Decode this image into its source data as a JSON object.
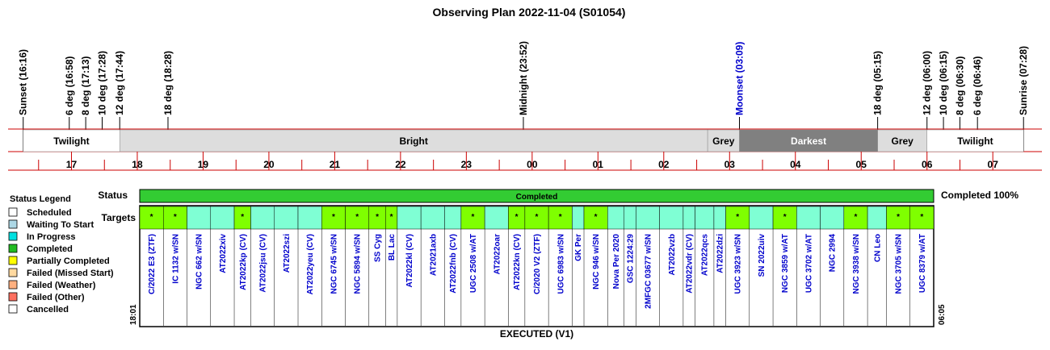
{
  "chart_data": {
    "type": "timeline",
    "title": "Observing Plan 2022-11-04 (S01054)",
    "events": [
      {
        "label": "Sunset (16:16)",
        "time": "16:16",
        "color": "#000000"
      },
      {
        "label": "6 deg (16:58)",
        "time": "16:58",
        "color": "#000000"
      },
      {
        "label": "8 deg (17:13)",
        "time": "17:13",
        "color": "#000000"
      },
      {
        "label": "10 deg (17:28)",
        "time": "17:28",
        "color": "#000000"
      },
      {
        "label": "12 deg (17:44)",
        "time": "17:44",
        "color": "#000000"
      },
      {
        "label": "18 deg (18:28)",
        "time": "18:28",
        "color": "#000000"
      },
      {
        "label": "Midnight (23:52)",
        "time": "23:52",
        "color": "#000000"
      },
      {
        "label": "Moonset (03:09)",
        "time": "03:09",
        "color": "#0000cc"
      },
      {
        "label": "18 deg (05:15)",
        "time": "05:15",
        "color": "#000000"
      },
      {
        "label": "12 deg (06:00)",
        "time": "06:00",
        "color": "#000000"
      },
      {
        "label": "10 deg (06:15)",
        "time": "06:15",
        "color": "#000000"
      },
      {
        "label": "8 deg (06:30)",
        "time": "06:30",
        "color": "#000000"
      },
      {
        "label": "6 deg (06:46)",
        "time": "06:46",
        "color": "#000000"
      },
      {
        "label": "Sunrise (07:28)",
        "time": "07:28",
        "color": "#000000"
      }
    ],
    "bands": [
      {
        "label": "Twilight",
        "start": "16:16",
        "end": "17:44",
        "fill": "#ffffff",
        "text_color": "#000000"
      },
      {
        "label": "Bright",
        "start": "17:44",
        "end": "02:40",
        "fill": "#dddddd",
        "text_color": "#000000"
      },
      {
        "label": "Grey",
        "start": "02:40",
        "end": "03:09",
        "fill": "#dddddd",
        "text_color": "#000000"
      },
      {
        "label": "Darkest",
        "start": "03:09",
        "end": "05:15",
        "fill": "#808080",
        "text_color": "#ffffff"
      },
      {
        "label": "Grey",
        "start": "05:15",
        "end": "06:00",
        "fill": "#dddddd",
        "text_color": "#000000"
      },
      {
        "label": "Twilight",
        "start": "06:00",
        "end": "07:28",
        "fill": "#ffffff",
        "text_color": "#000000"
      }
    ],
    "hour_ticks": [
      "17",
      "18",
      "19",
      "20",
      "21",
      "22",
      "23",
      "00",
      "01",
      "02",
      "03",
      "04",
      "05",
      "06",
      "07"
    ],
    "status_row": {
      "label": "Status",
      "value": "Completed",
      "summary": "Completed 100%"
    },
    "targets_label": "Targets",
    "marker_glyph": "*",
    "start_time": "18:01",
    "end_time": "06:05",
    "footer": "EXECUTED (V1)",
    "targets": [
      {
        "name": "C/2022 E3 (ZTF)",
        "width": 1.0,
        "status": "partial"
      },
      {
        "name": "IC 1132 w/SN",
        "width": 1.0,
        "status": "partial"
      },
      {
        "name": "NGC 662 w/SN",
        "width": 1.0,
        "status": "completed"
      },
      {
        "name": "AT2022xiv",
        "width": 1.0,
        "status": "completed"
      },
      {
        "name": "AT2022kp (CV)",
        "width": 0.7,
        "status": "partial"
      },
      {
        "name": "AT2022jsu (CV)",
        "width": 1.0,
        "status": "completed"
      },
      {
        "name": "AT2022szi",
        "width": 1.0,
        "status": "completed"
      },
      {
        "name": "AT2022yeu (CV)",
        "width": 1.0,
        "status": "completed"
      },
      {
        "name": "NGC 6745 w/SN",
        "width": 1.0,
        "status": "partial"
      },
      {
        "name": "NGC 5894 w/SN",
        "width": 1.0,
        "status": "partial"
      },
      {
        "name": "SS Cyg",
        "width": 0.7,
        "status": "partial"
      },
      {
        "name": "BL Lac",
        "width": 0.5,
        "status": "partial"
      },
      {
        "name": "AT2022kl (CV)",
        "width": 1.0,
        "status": "completed"
      },
      {
        "name": "AT2021axb",
        "width": 1.0,
        "status": "completed"
      },
      {
        "name": "AT2022fnb (CV)",
        "width": 0.7,
        "status": "completed"
      },
      {
        "name": "UGC 2508 w/AT",
        "width": 1.0,
        "status": "partial"
      },
      {
        "name": "AT2022oar",
        "width": 1.0,
        "status": "completed"
      },
      {
        "name": "AT2022kn (CV)",
        "width": 0.7,
        "status": "partial"
      },
      {
        "name": "C/2020 V2 (ZTF)",
        "width": 1.0,
        "status": "partial"
      },
      {
        "name": "UGC 6983 w/SN",
        "width": 1.0,
        "status": "partial"
      },
      {
        "name": "GK Per",
        "width": 0.5,
        "status": "completed"
      },
      {
        "name": "NGC 946 w/SN",
        "width": 1.0,
        "status": "partial"
      },
      {
        "name": "Nova Per 2020",
        "width": 0.7,
        "status": "completed"
      },
      {
        "name": "GSC 1224:29",
        "width": 0.5,
        "status": "completed"
      },
      {
        "name": "2MFGC 03677 w/SN",
        "width": 1.0,
        "status": "completed"
      },
      {
        "name": "AT2022vzb",
        "width": 1.0,
        "status": "completed"
      },
      {
        "name": "AT2022vdr (CV)",
        "width": 0.5,
        "status": "completed"
      },
      {
        "name": "AT2022qcs",
        "width": 0.8,
        "status": "completed"
      },
      {
        "name": "AT2022dzi",
        "width": 0.5,
        "status": "completed"
      },
      {
        "name": "UGC 3923 w/SN",
        "width": 1.0,
        "status": "partial"
      },
      {
        "name": "SN 2022uiv",
        "width": 1.0,
        "status": "completed"
      },
      {
        "name": "NGC 3859 w/AT",
        "width": 1.0,
        "status": "partial"
      },
      {
        "name": "UGC 3702 w/AT",
        "width": 1.0,
        "status": "completed"
      },
      {
        "name": "NGC 2994",
        "width": 1.0,
        "status": "completed"
      },
      {
        "name": "NGC 3938 w/SN",
        "width": 1.0,
        "status": "partial"
      },
      {
        "name": "CN Leo",
        "width": 0.8,
        "status": "completed"
      },
      {
        "name": "NGC 3705 w/SN",
        "width": 1.0,
        "status": "partial"
      },
      {
        "name": "UGC 8379 w/AT",
        "width": 1.0,
        "status": "partial"
      }
    ],
    "legend": {
      "title": "Status Legend",
      "placement": "left",
      "items": [
        {
          "label": "Scheduled",
          "color": "#ffffff"
        },
        {
          "label": "Waiting To Start",
          "color": "#add8e6"
        },
        {
          "label": "In Progress",
          "color": "#00e0e0"
        },
        {
          "label": "Completed",
          "color": "#22bb22"
        },
        {
          "label": "Partially Completed",
          "color": "#ffff00"
        },
        {
          "label": "Failed (Missed Start)",
          "color": "#ffd9a0"
        },
        {
          "label": "Failed (Weather)",
          "color": "#ffb080"
        },
        {
          "label": "Failed (Other)",
          "color": "#ff7060"
        },
        {
          "label": "Cancelled",
          "color": "#ffffff"
        }
      ]
    },
    "colors": {
      "status_completed": "#33cc33",
      "target_completed": "#7fffd4",
      "target_partial": "#7fff00",
      "axis_line": "#cc0000",
      "link_text": "#0000cc"
    }
  }
}
